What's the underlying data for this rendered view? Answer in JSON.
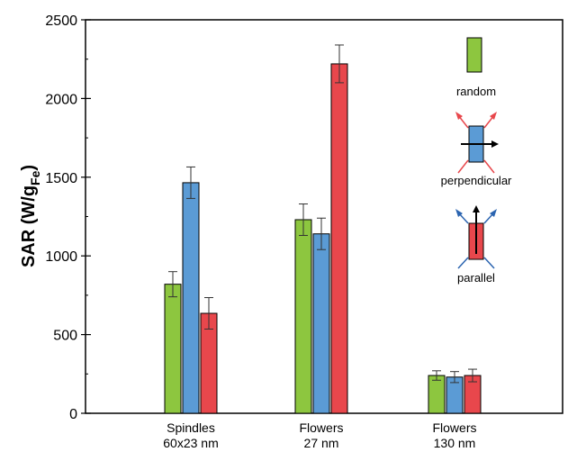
{
  "chart_data": {
    "type": "bar",
    "ylabel": "SAR (W/g",
    "ylabel_sub": "Fe",
    "ylabel_close": ")",
    "ylim": [
      0,
      2500
    ],
    "yticks": [
      "0",
      "500",
      "1000",
      "1500",
      "2000",
      "2500"
    ],
    "categories": [
      {
        "line1": "Spindles",
        "line2": "60x23 nm"
      },
      {
        "line1": "Flowers",
        "line2": "27 nm"
      },
      {
        "line1": "Flowers",
        "line2": "130 nm"
      }
    ],
    "series": [
      {
        "name": "random",
        "color": "#8dc63f",
        "values": [
          820,
          1230,
          240
        ],
        "errors": [
          80,
          100,
          30
        ]
      },
      {
        "name": "perpendicular",
        "color": "#5b9bd5",
        "values": [
          1465,
          1140,
          230
        ],
        "errors": [
          100,
          100,
          35
        ]
      },
      {
        "name": "parallel",
        "color": "#e8474c",
        "values": [
          635,
          2220,
          240
        ],
        "errors": [
          100,
          120,
          40
        ]
      }
    ],
    "legend_placement": "right",
    "grid": false
  }
}
